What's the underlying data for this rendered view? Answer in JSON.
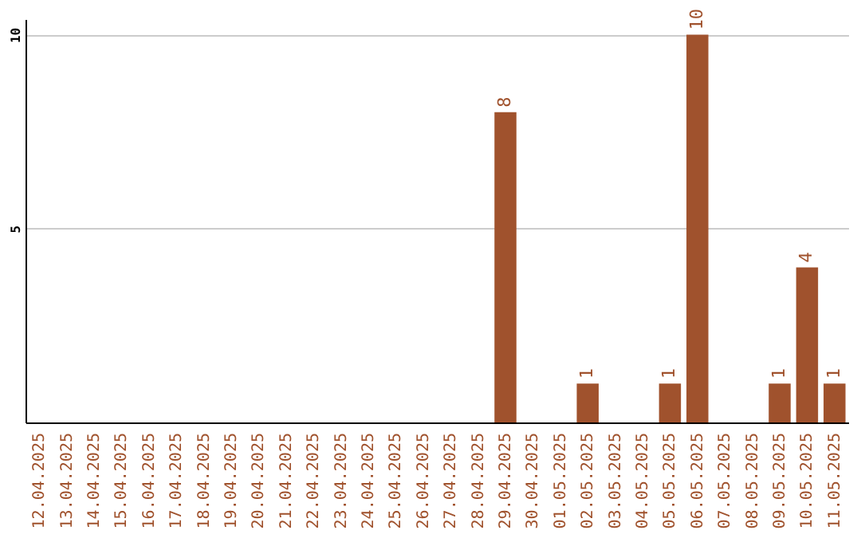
{
  "chart_data": {
    "type": "bar",
    "categories": [
      "12.04.2025",
      "13.04.2025",
      "14.04.2025",
      "15.04.2025",
      "16.04.2025",
      "17.04.2025",
      "18.04.2025",
      "19.04.2025",
      "20.04.2025",
      "21.04.2025",
      "22.04.2025",
      "23.04.2025",
      "24.04.2025",
      "25.04.2025",
      "26.04.2025",
      "27.04.2025",
      "28.04.2025",
      "29.04.2025",
      "30.04.2025",
      "01.05.2025",
      "02.05.2025",
      "03.05.2025",
      "04.05.2025",
      "05.05.2025",
      "06.05.2025",
      "07.05.2025",
      "08.05.2025",
      "09.05.2025",
      "10.05.2025",
      "11.05.2025"
    ],
    "values": [
      null,
      null,
      null,
      null,
      null,
      null,
      null,
      null,
      null,
      null,
      null,
      null,
      null,
      null,
      null,
      null,
      null,
      8,
      null,
      null,
      1,
      null,
      null,
      1,
      10,
      null,
      null,
      1,
      4,
      1
    ],
    "color": "#a0522d",
    "ylim": [
      0,
      10.4
    ],
    "yticks": [
      5,
      10
    ],
    "grid": "y",
    "data_labels": true
  }
}
